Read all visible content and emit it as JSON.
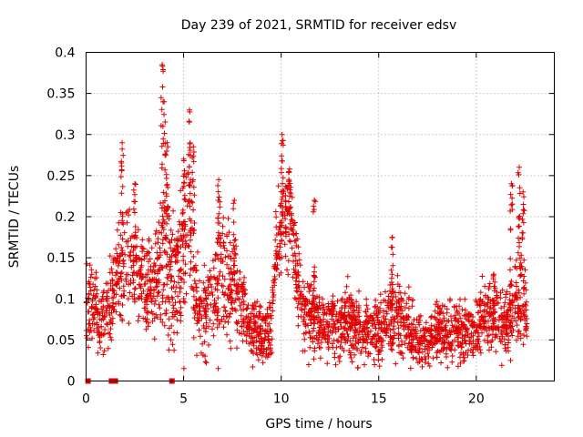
{
  "chart_data": {
    "type": "scatter",
    "title": "Day 239 of 2021, SRMTID for receiver edsv",
    "xlabel": "GPS time / hours",
    "ylabel": "SRMTID / TECUs",
    "xlim": [
      0,
      24
    ],
    "ylim": [
      0,
      0.4
    ],
    "grid": true,
    "x_ticks": [
      0,
      5,
      10,
      15,
      20
    ],
    "y_ticks": [
      0,
      0.05,
      0.1,
      0.15,
      0.2,
      0.25,
      0.3,
      0.35,
      0.4
    ],
    "x_tick_labels": [
      "0",
      "5",
      "10",
      "15",
      "20"
    ],
    "y_tick_labels": [
      "0",
      "0.05",
      "0.1",
      "0.15",
      "0.2",
      "0.25",
      "0.3",
      "0.35",
      "0.4"
    ],
    "series": [
      {
        "name": "SRMTID",
        "color": "#e00000",
        "marker": "plus",
        "x_range": [
          0,
          22.6
        ],
        "profile": [
          [
            0.0,
            0.085,
            0.03
          ],
          [
            0.3,
            0.1,
            0.035
          ],
          [
            0.7,
            0.075,
            0.025
          ],
          [
            1.0,
            0.085,
            0.03
          ],
          [
            1.5,
            0.12,
            0.035
          ],
          [
            2.0,
            0.15,
            0.045
          ],
          [
            2.5,
            0.14,
            0.04
          ],
          [
            3.0,
            0.11,
            0.04
          ],
          [
            3.5,
            0.12,
            0.04
          ],
          [
            4.0,
            0.16,
            0.07
          ],
          [
            4.5,
            0.11,
            0.04
          ],
          [
            5.0,
            0.15,
            0.06
          ],
          [
            5.3,
            0.2,
            0.065
          ],
          [
            5.6,
            0.1,
            0.04
          ],
          [
            6.0,
            0.09,
            0.035
          ],
          [
            6.5,
            0.1,
            0.04
          ],
          [
            7.0,
            0.13,
            0.05
          ],
          [
            7.5,
            0.11,
            0.045
          ],
          [
            8.0,
            0.09,
            0.03
          ],
          [
            8.5,
            0.07,
            0.025
          ],
          [
            9.0,
            0.055,
            0.025
          ],
          [
            9.5,
            0.06,
            0.025
          ],
          [
            9.7,
            0.15,
            0.04
          ],
          [
            10.0,
            0.19,
            0.04
          ],
          [
            10.5,
            0.2,
            0.035
          ],
          [
            10.8,
            0.14,
            0.04
          ],
          [
            11.0,
            0.09,
            0.03
          ],
          [
            11.5,
            0.08,
            0.03
          ],
          [
            12.0,
            0.07,
            0.025
          ],
          [
            13.0,
            0.065,
            0.025
          ],
          [
            13.5,
            0.075,
            0.03
          ],
          [
            14.0,
            0.06,
            0.025
          ],
          [
            15.0,
            0.06,
            0.025
          ],
          [
            15.8,
            0.08,
            0.035
          ],
          [
            16.5,
            0.065,
            0.025
          ],
          [
            17.0,
            0.05,
            0.02
          ],
          [
            18.0,
            0.06,
            0.025
          ],
          [
            19.0,
            0.055,
            0.025
          ],
          [
            20.0,
            0.065,
            0.025
          ],
          [
            20.5,
            0.08,
            0.03
          ],
          [
            21.0,
            0.075,
            0.03
          ],
          [
            21.5,
            0.065,
            0.025
          ],
          [
            22.0,
            0.1,
            0.04
          ],
          [
            22.3,
            0.1,
            0.04
          ],
          [
            22.6,
            0.085,
            0.03
          ]
        ],
        "peaks": [
          {
            "x": 1.85,
            "y": 0.29
          },
          {
            "x": 2.5,
            "y": 0.24
          },
          {
            "x": 3.9,
            "y": 0.385
          },
          {
            "x": 4.0,
            "y": 0.34
          },
          {
            "x": 4.15,
            "y": 0.29
          },
          {
            "x": 5.0,
            "y": 0.27
          },
          {
            "x": 5.3,
            "y": 0.33
          },
          {
            "x": 5.5,
            "y": 0.285
          },
          {
            "x": 6.8,
            "y": 0.245
          },
          {
            "x": 7.6,
            "y": 0.22
          },
          {
            "x": 10.05,
            "y": 0.3
          },
          {
            "x": 10.4,
            "y": 0.255
          },
          {
            "x": 11.7,
            "y": 0.22
          },
          {
            "x": 15.7,
            "y": 0.175
          },
          {
            "x": 20.9,
            "y": 0.13
          },
          {
            "x": 21.8,
            "y": 0.24
          },
          {
            "x": 22.2,
            "y": 0.26
          },
          {
            "x": 22.4,
            "y": 0.23
          }
        ],
        "zero_markers": [
          0.1,
          1.3,
          1.5,
          4.4
        ]
      }
    ]
  }
}
